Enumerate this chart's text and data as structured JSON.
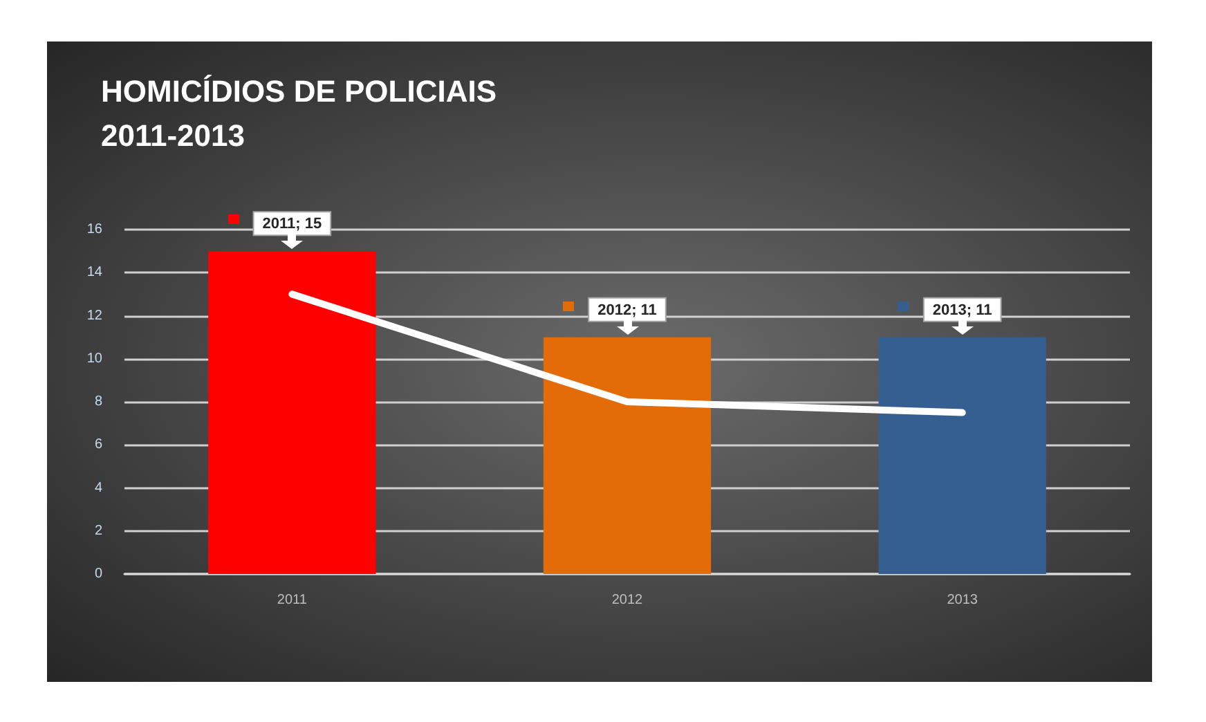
{
  "chart_data": {
    "type": "bar",
    "title": "HOMICÍDIOS DE POLICIAIS",
    "subtitle": "2011-2013",
    "categories": [
      "2011",
      "2012",
      "2013"
    ],
    "series": [
      {
        "colors": [
          "#ff0000",
          "#e36c09",
          "#365f91"
        ],
        "values": [
          15,
          11,
          11
        ],
        "value_labels": [
          "2011; 15",
          "2012; 11",
          "2013; 11"
        ]
      },
      {
        "type": "line",
        "color": "#ffffff",
        "values": [
          13,
          8,
          7.5
        ],
        "marker": "none",
        "line_style": "solid"
      }
    ],
    "ylim": [
      0,
      16
    ],
    "yticks": [
      0,
      2,
      4,
      6,
      8,
      10,
      12,
      14,
      16
    ],
    "grid": "y"
  }
}
